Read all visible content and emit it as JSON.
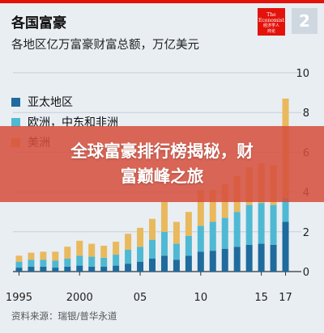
{
  "header": {
    "title": "各国富豪",
    "subtitle": "各地区亿万富豪财富总额，万亿美元",
    "logo_line1": "The",
    "logo_line2": "Economist",
    "logo_line3": "经济学人",
    "logo_line4": "商论",
    "page_number": "2"
  },
  "legend": [
    {
      "label": "亚太地区",
      "color": "#1f6b9e"
    },
    {
      "label": "欧洲，中东和非洲",
      "color": "#4fb9d3"
    },
    {
      "label": "美洲",
      "color": "#e9b95d"
    }
  ],
  "footer": {
    "source": "资料来源：瑞银/普华永道"
  },
  "overlay": {
    "line1": "全球富豪排行榜揭秘，财",
    "line2": "富巅峰之旅"
  },
  "colors": {
    "accent_red": "#e3120b",
    "asia": "#1f6b9e",
    "emea": "#4fb9d3",
    "americas": "#e9b95d"
  },
  "chart_data": {
    "type": "bar",
    "stacked": true,
    "title": "各国富豪",
    "subtitle": "各地区亿万富豪财富总额，万亿美元",
    "x": [
      1995,
      1996,
      1997,
      1998,
      1999,
      2000,
      2001,
      2002,
      2003,
      2004,
      2005,
      2006,
      2007,
      2008,
      2009,
      2010,
      2011,
      2012,
      2013,
      2014,
      2015,
      2016,
      2017
    ],
    "x_tick_labels": [
      {
        "x": 1995,
        "label": "1995"
      },
      {
        "x": 2000,
        "label": "2000"
      },
      {
        "x": 2005,
        "label": "05"
      },
      {
        "x": 2010,
        "label": "10"
      },
      {
        "x": 2015,
        "label": "15"
      },
      {
        "x": 2017,
        "label": "17"
      }
    ],
    "ylim": [
      0,
      10
    ],
    "y_ticks": [
      0,
      2,
      4,
      6,
      8,
      10
    ],
    "y_axis_side": "right",
    "grid": true,
    "legend_position": "top-left",
    "series": [
      {
        "name": "亚太地区",
        "color": "#1f6b9e",
        "values": [
          0.2,
          0.25,
          0.25,
          0.2,
          0.25,
          0.3,
          0.25,
          0.25,
          0.3,
          0.4,
          0.5,
          0.65,
          0.8,
          0.6,
          0.8,
          1.0,
          1.05,
          1.15,
          1.25,
          1.35,
          1.4,
          1.35,
          2.5
        ]
      },
      {
        "name": "欧洲，中东和非洲",
        "color": "#4fb9d3",
        "values": [
          0.3,
          0.35,
          0.35,
          0.35,
          0.4,
          0.5,
          0.5,
          0.45,
          0.55,
          0.7,
          0.75,
          0.95,
          1.2,
          0.8,
          1.0,
          1.3,
          1.45,
          1.55,
          1.75,
          2.0,
          2.05,
          2.0,
          1.2
        ]
      },
      {
        "name": "美洲",
        "color": "#e9b95d",
        "values": [
          0.3,
          0.35,
          0.4,
          0.45,
          0.6,
          0.75,
          0.65,
          0.6,
          0.65,
          0.8,
          0.95,
          1.05,
          1.5,
          1.1,
          1.2,
          1.8,
          1.6,
          1.7,
          1.8,
          1.9,
          2.0,
          2.0,
          5.0
        ]
      }
    ]
  }
}
